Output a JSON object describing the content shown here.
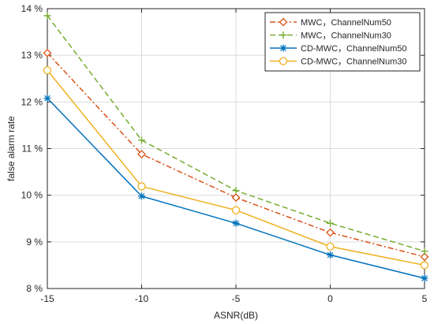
{
  "chart_data": {
    "type": "line",
    "title": "",
    "xlabel": "ASNR(dB)",
    "ylabel": "false alarm rate",
    "x": [
      -15,
      -10,
      -5,
      0,
      5
    ],
    "xlim": [
      -15,
      5
    ],
    "ylim": [
      8,
      14
    ],
    "xticks": [
      -15,
      -10,
      -5,
      0,
      5
    ],
    "xtick_labels": [
      "-15",
      "-10",
      "-5",
      "0",
      "5"
    ],
    "yticks": [
      8,
      9,
      10,
      11,
      12,
      13,
      14
    ],
    "ytick_labels": [
      "8 %",
      "9 %",
      "10 %",
      "11 %",
      "12 %",
      "13 %",
      "14 %"
    ],
    "grid": true,
    "legend_position": "top-right",
    "series": [
      {
        "name": "MWC，ChannelNum50",
        "color": "#D95319",
        "dash": "dashdot",
        "marker": "diamond",
        "values": [
          13.05,
          10.88,
          9.95,
          9.2,
          8.68
        ]
      },
      {
        "name": "MWC，ChannelNum30",
        "color": "#77AC30",
        "dash": "dashed",
        "marker": "plus",
        "values": [
          13.85,
          11.18,
          10.1,
          9.4,
          8.8
        ]
      },
      {
        "name": "CD-MWC，ChannelNum50",
        "color": "#0072BD",
        "dash": "solid",
        "marker": "asterisk",
        "values": [
          12.08,
          9.98,
          9.4,
          8.72,
          8.22
        ]
      },
      {
        "name": "CD-MWC，ChannelNum30",
        "color": "#EDB120",
        "dash": "solid",
        "marker": "circle",
        "values": [
          12.68,
          10.19,
          9.68,
          8.9,
          8.5
        ]
      }
    ]
  }
}
